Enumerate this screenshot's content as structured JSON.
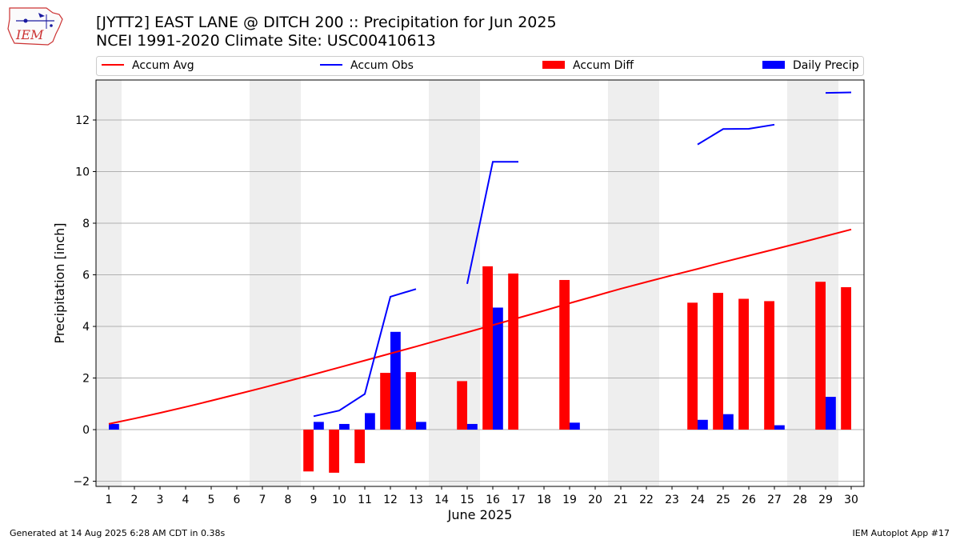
{
  "logo_text": "IEM",
  "title_line1": "[JYTT2] EAST LANE @ DITCH 200 :: Precipitation for Jun 2025",
  "title_line2": "NCEI 1991-2020 Climate Site: USC00410613",
  "footer_left": "Generated at 14 Aug 2025 6:28 AM CDT in 0.38s",
  "footer_right": "IEM Autoplot App #17",
  "colors": {
    "accum_avg": "#ff0000",
    "accum_obs": "#0000ff",
    "accum_diff": "#ff0000",
    "daily_precip": "#0000ff",
    "weekend_shade": "#eeeeee",
    "grid": "#b0b0b0"
  },
  "chart_data": {
    "type": "bar",
    "xlabel": "June 2025",
    "ylabel": "Precipitation [inch]",
    "xlim": [
      0.5,
      30.5
    ],
    "ylim": [
      -2.2,
      13.55
    ],
    "x": [
      1,
      2,
      3,
      4,
      5,
      6,
      7,
      8,
      9,
      10,
      11,
      12,
      13,
      14,
      15,
      16,
      17,
      18,
      19,
      20,
      21,
      22,
      23,
      24,
      25,
      26,
      27,
      28,
      29,
      30
    ],
    "x_tick_labels": [
      "1",
      "2",
      "3",
      "4",
      "5",
      "6",
      "7",
      "8",
      "9",
      "10",
      "11",
      "12",
      "13",
      "14",
      "15",
      "16",
      "17",
      "18",
      "19",
      "20",
      "21",
      "22",
      "23",
      "24",
      "25",
      "26",
      "27",
      "28",
      "29",
      "30"
    ],
    "y_ticks": [
      -2,
      0,
      2,
      4,
      6,
      8,
      10,
      12
    ],
    "grid": "horizontal",
    "weekend_days": [
      1,
      7,
      8,
      14,
      15,
      21,
      22,
      28,
      29
    ],
    "legend": {
      "placement": "top",
      "entries": [
        "Accum Avg",
        "Accum Obs",
        "Accum Diff",
        "Daily Precip"
      ]
    },
    "series": [
      {
        "name": "Accum Avg",
        "kind": "line",
        "values": [
          0.22,
          0.43,
          0.65,
          0.88,
          1.12,
          1.37,
          1.62,
          1.88,
          2.14,
          2.41,
          2.68,
          2.95,
          3.22,
          3.5,
          3.77,
          4.05,
          4.33,
          4.61,
          4.9,
          5.18,
          5.46,
          5.72,
          5.98,
          6.23,
          6.49,
          6.74,
          6.99,
          7.24,
          7.5,
          7.76
        ]
      },
      {
        "name": "Accum Obs",
        "kind": "line",
        "values": [
          null,
          null,
          null,
          null,
          null,
          null,
          null,
          null,
          0.52,
          0.74,
          1.38,
          5.15,
          5.45,
          null,
          5.65,
          10.38,
          10.38,
          null,
          null,
          null,
          null,
          null,
          null,
          11.05,
          11.65,
          11.66,
          11.82,
          null,
          13.05,
          13.07
        ]
      },
      {
        "name": "Accum Diff",
        "kind": "bar",
        "values": [
          null,
          null,
          null,
          null,
          null,
          null,
          null,
          null,
          -1.62,
          -1.67,
          -1.3,
          2.2,
          2.23,
          null,
          1.88,
          6.33,
          6.05,
          null,
          5.8,
          null,
          null,
          null,
          null,
          4.92,
          5.3,
          5.07,
          4.98,
          null,
          5.73,
          5.52
        ]
      },
      {
        "name": "Daily Precip",
        "kind": "bar",
        "values": [
          0.22,
          null,
          null,
          null,
          null,
          null,
          null,
          null,
          0.3,
          0.22,
          0.64,
          3.79,
          0.3,
          null,
          0.22,
          4.73,
          null,
          null,
          0.27,
          null,
          null,
          null,
          null,
          0.38,
          0.6,
          null,
          0.17,
          null,
          1.27,
          null
        ]
      }
    ]
  }
}
